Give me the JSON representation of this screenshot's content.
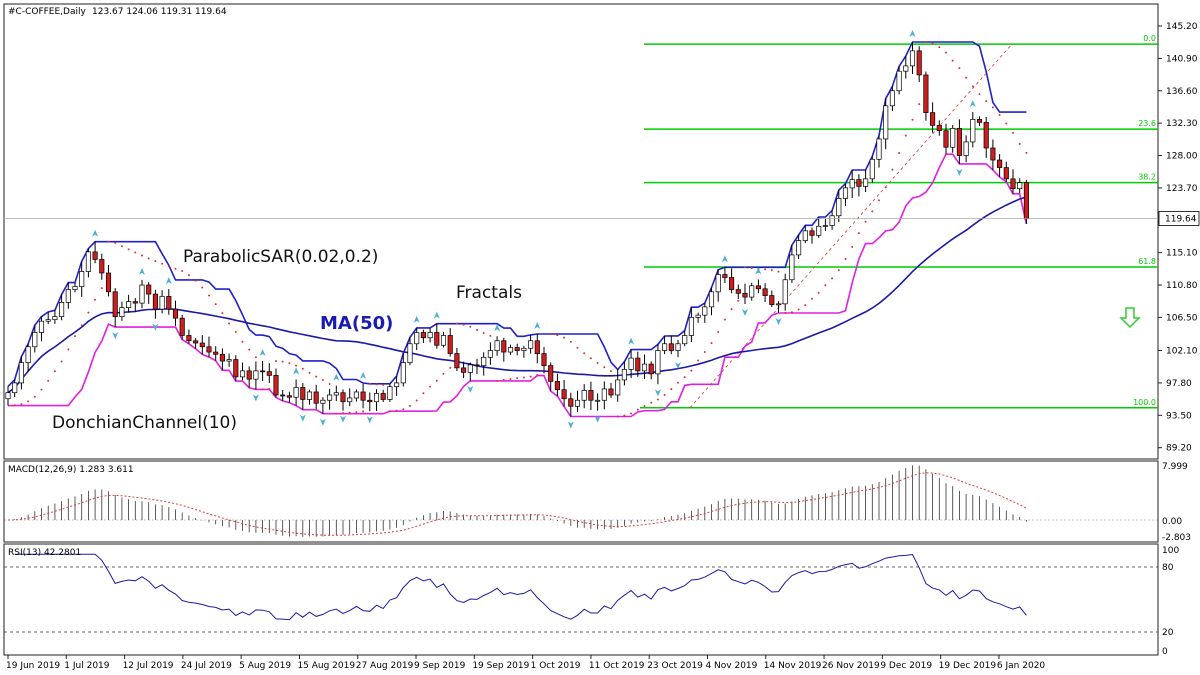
{
  "header": {
    "symbol": "#C-COFFEE,Daily",
    "ohlc": "123.67 124.06 119.31 119.64"
  },
  "annotations": {
    "parabolic_sar": "ParabolicSAR(0.02,0.2)",
    "fractals": "Fractals",
    "ma": "MA(50)",
    "donchian": "DonchianChannel(10)"
  },
  "colors": {
    "bull": "#ffffff",
    "bear": "#cc1e1e",
    "ma": "#1a1aa6",
    "donchian_upper": "#2020c8",
    "donchian_lower": "#e020e0",
    "sar": "#e03030",
    "fib": "#00cc00",
    "macd_signal": "#d04040",
    "rsi": "#1a1aa6",
    "fractal": "#4ab0d0",
    "arrow": "#33cc33"
  },
  "chart_data": [
    {
      "type": "candlestick",
      "panel": "price",
      "price_axis": {
        "ticks": [
          145.2,
          140.9,
          136.6,
          132.3,
          128.0,
          123.7,
          119.64,
          115.1,
          110.8,
          106.5,
          102.1,
          97.8,
          93.5,
          89.2
        ],
        "current": "119.64"
      },
      "time_axis": [
        "19 Jun 2019",
        "1 Jul 2019",
        "12 Jul 2019",
        "24 Jul 2019",
        "5 Aug 2019",
        "15 Aug 2019",
        "27 Aug 2019",
        "9 Sep 2019",
        "19 Sep 2019",
        "1 Oct 2019",
        "11 Oct 2019",
        "23 Oct 2019",
        "4 Nov 2019",
        "14 Nov 2019",
        "26 Nov 2019",
        "9 Dec 2019",
        "19 Dec 2019",
        "6 Jan 2020"
      ],
      "close": [
        96.5,
        97.8,
        100.5,
        102.6,
        104.5,
        106.0,
        106.2,
        106.6,
        108.5,
        110.2,
        110.6,
        112.6,
        115.2,
        114.2,
        112.4,
        109.9,
        106.6,
        107.8,
        108.6,
        108.4,
        110.8,
        109.6,
        107.6,
        109.3,
        107.6,
        106.4,
        104.1,
        103.4,
        103.1,
        102.6,
        101.9,
        101.6,
        100.7,
        100.9,
        98.6,
        99.4,
        98.3,
        99.4,
        99.3,
        98.8,
        96.2,
        96.1,
        95.9,
        97.2,
        95.6,
        96.6,
        95.1,
        95.5,
        96.2,
        96.5,
        95.3,
        95.8,
        96.6,
        95.5,
        95.3,
        96.4,
        95.6,
        97.3,
        97.8,
        100.5,
        103.0,
        104.5,
        103.8,
        104.5,
        102.8,
        104.1,
        101.7,
        99.8,
        99.2,
        100.2,
        100.1,
        101.2,
        102.1,
        103.4,
        101.9,
        102.5,
        102.1,
        102.4,
        103.4,
        101.7,
        100.1,
        98.0,
        96.9,
        95.7,
        94.7,
        95.5,
        96.8,
        95.5,
        95.5,
        97.0,
        96.2,
        98.2,
        99.6,
        101.1,
        99.4,
        100.3,
        99.0,
        102.1,
        103.0,
        102.1,
        103.0,
        104.1,
        106.5,
        106.8,
        107.9,
        109.9,
        112.2,
        111.8,
        110.2,
        109.7,
        109.2,
        110.7,
        110.3,
        109.4,
        108.2,
        108.3,
        111.5,
        114.8,
        116.7,
        118.0,
        117.4,
        118.6,
        118.7,
        120.0,
        122.3,
        123.7,
        124.8,
        123.9,
        124.9,
        127.5,
        130.2,
        134.6,
        136.6,
        139.2,
        139.9,
        141.9,
        138.7,
        133.7,
        132.0,
        131.3,
        129.1,
        131.6,
        128.0,
        129.8,
        132.8,
        132.4,
        129.0,
        127.4,
        126.4,
        124.9,
        123.6,
        124.4,
        119.6
      ]
    },
    {
      "type": "line",
      "panel": "macd",
      "title": "MACD(12,26,9) 1.283 3.611",
      "yticks": [
        "7.999",
        "0.00",
        "-2.803"
      ]
    },
    {
      "type": "line",
      "panel": "rsi",
      "title": "RSI(13) 42.2801",
      "yticks": [
        "100",
        "80",
        "20",
        "0"
      ]
    },
    {
      "type": "fibonacci",
      "levels": [
        {
          "label": "0.0",
          "price": 142.8
        },
        {
          "label": "23.6",
          "price": 131.5
        },
        {
          "label": "38.2",
          "price": 124.4
        },
        {
          "label": "61.8",
          "price": 113.2
        },
        {
          "label": "100.0",
          "price": 94.5
        }
      ]
    }
  ]
}
